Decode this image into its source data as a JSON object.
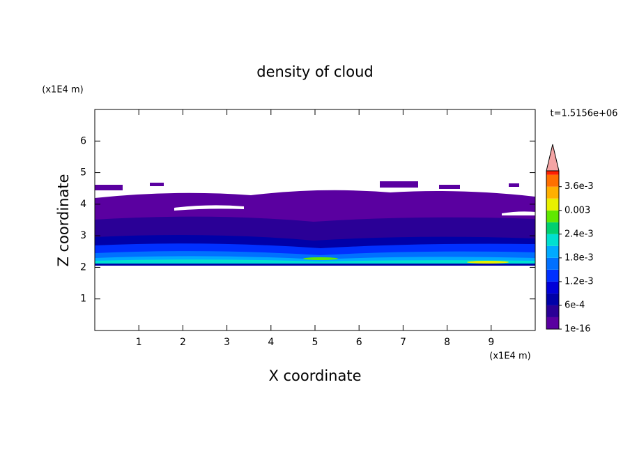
{
  "chart_data": {
    "type": "contour",
    "title": "density of cloud",
    "x_label": "X coordinate",
    "y_label": "Z coordinate",
    "x_unit": "(x1E4 m)",
    "y_unit": "(x1E4 m)",
    "time_label": "t=1.5156e+06",
    "xlim": [
      0,
      10
    ],
    "xticks": [
      1,
      2,
      3,
      4,
      5,
      6,
      7,
      8,
      9
    ],
    "ylim": [
      0,
      7
    ],
    "yticks": [
      1,
      2,
      3,
      4,
      5,
      6
    ],
    "colorbar": {
      "clim": [
        0,
        0.004
      ],
      "levels": [
        1e-16,
        0.0003,
        0.0006,
        0.0009,
        0.0012,
        0.0015,
        0.0018,
        0.0021,
        0.0024,
        0.0027,
        0.003,
        0.0033,
        0.0036,
        0.0039
      ],
      "colors": [
        "#5a00a0",
        "#2a0096",
        "#0000a8",
        "#0000d8",
        "#0030ff",
        "#0070ff",
        "#00aaff",
        "#00e0d0",
        "#00d070",
        "#60e800",
        "#e8f000",
        "#ffb000",
        "#ff7000",
        "#ff2000"
      ],
      "extend_color": "#f4a4a4",
      "ticks": [
        {
          "value": 1e-16,
          "label": "1e-16"
        },
        {
          "value": 0.0006,
          "label": "6e-4"
        },
        {
          "value": 0.0012,
          "label": "1.2e-3"
        },
        {
          "value": 0.0018,
          "label": "1.8e-3"
        },
        {
          "value": 0.0024,
          "label": "2.4e-3"
        },
        0.003,
        {
          "value": 0.0036,
          "label": "3.6e-3"
        }
      ]
    }
  }
}
